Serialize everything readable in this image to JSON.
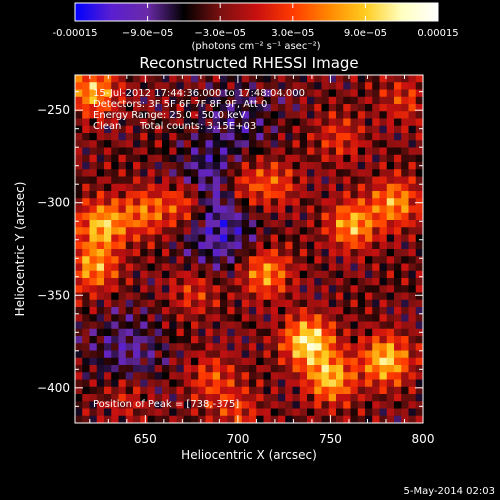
{
  "chart_data": {
    "type": "heatmap",
    "title": "Reconstructed RHESSI Image",
    "xlabel": "Heliocentric X (arcsec)",
    "ylabel": "Heliocentric Y (arcsec)",
    "xlim": [
      612,
      800
    ],
    "ylim": [
      -419,
      -231
    ],
    "x_ticks": [
      650,
      700,
      750,
      800
    ],
    "y_ticks": [
      -250,
      -300,
      -350,
      -400
    ],
    "colorbar": {
      "range": [
        -0.00015,
        0.00015
      ],
      "tick_values": [
        -0.00015,
        -9e-05,
        -3e-05,
        3e-05,
        9e-05,
        0.00015
      ],
      "tick_labels": [
        "-0.00015",
        "−9.0e−05",
        "−3.0e−05",
        "3.0e−05",
        "9.0e−05",
        "0.00015"
      ],
      "unit_label": "(photons cm⁻² s⁻¹ asec⁻²)",
      "colors": [
        "#0000ff",
        "#5a1fd0",
        "#6a2aa8",
        "#000000",
        "#7a1010",
        "#c81010",
        "#ff3a00",
        "#ff8800",
        "#ffcc20",
        "#ffffc0",
        "#ffffff"
      ]
    },
    "annotations": {
      "time_range": "15-Jul-2012 17:44:36.000 to 17:48:04.000",
      "detectors": "Detectors: 3F 5F 6F 7F 8F 9F, Att 0",
      "energy_range": "Energy Range: 25.0 - 50.0 keV",
      "algorithm": "Clean",
      "total_counts": "Total counts: 3.15E+03",
      "peak_position": "Position of Peak = [738,-375]"
    },
    "peak": {
      "x": 738,
      "y": -375
    },
    "sources": [
      {
        "x": 622,
        "y": -240,
        "amplitude": 0.00011
      },
      {
        "x": 627,
        "y": -312,
        "amplitude": 0.00012
      },
      {
        "x": 622,
        "y": -335,
        "amplitude": 0.0001
      },
      {
        "x": 650,
        "y": -305,
        "amplitude": 8e-05
      },
      {
        "x": 672,
        "y": -300,
        "amplitude": 9e-05
      },
      {
        "x": 702,
        "y": -290,
        "amplitude": 7e-05
      },
      {
        "x": 720,
        "y": -290,
        "amplitude": 6e-05
      },
      {
        "x": 715,
        "y": -338,
        "amplitude": 0.0001
      },
      {
        "x": 738,
        "y": -375,
        "amplitude": 0.00015
      },
      {
        "x": 750,
        "y": -395,
        "amplitude": 0.00012
      },
      {
        "x": 762,
        "y": -312,
        "amplitude": 0.00011
      },
      {
        "x": 785,
        "y": -300,
        "amplitude": 0.0001
      },
      {
        "x": 780,
        "y": -385,
        "amplitude": 0.00013
      },
      {
        "x": 755,
        "y": -265,
        "amplitude": 5e-05
      },
      {
        "x": 686,
        "y": -395,
        "amplitude": 6e-05
      },
      {
        "x": 700,
        "y": -413,
        "amplitude": 5e-05
      },
      {
        "x": 640,
        "y": -405,
        "amplitude": 4e-05
      },
      {
        "x": 790,
        "y": -245,
        "amplitude": 5e-05
      },
      {
        "x": 676,
        "y": -348,
        "amplitude": 5e-05
      }
    ],
    "minima": [
      {
        "x": 685,
        "y": -290,
        "amplitude": -7e-05
      },
      {
        "x": 690,
        "y": -318,
        "amplitude": -6e-05
      },
      {
        "x": 640,
        "y": -380,
        "amplitude": -5e-05
      },
      {
        "x": 700,
        "y": -255,
        "amplitude": -4e-05
      }
    ]
  },
  "footer": {
    "timestamp": "5-May-2014 02:03"
  }
}
